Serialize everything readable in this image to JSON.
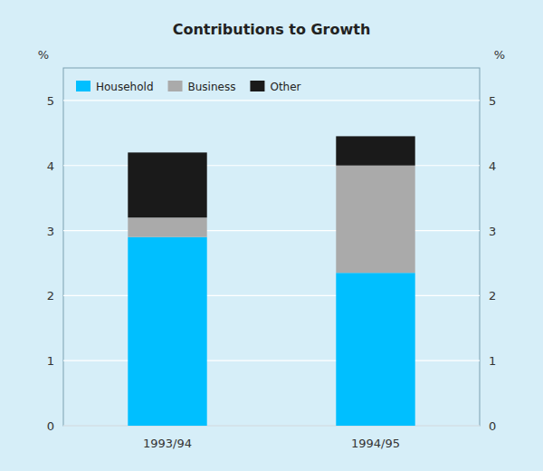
{
  "chart_data": {
    "type": "bar",
    "stacked": true,
    "title": "Contributions to Growth",
    "categories": [
      "1993/94",
      "1994/95"
    ],
    "series": [
      {
        "name": "Household",
        "color": "#00BFFF",
        "values": [
          2.9,
          2.35
        ]
      },
      {
        "name": "Business",
        "color": "#AAAAAA",
        "values": [
          0.3,
          1.65
        ]
      },
      {
        "name": "Other",
        "color": "#1A1A1A",
        "values": [
          1.0,
          0.45
        ]
      }
    ],
    "ylabel": "%",
    "y2label": "%",
    "ylim": [
      0,
      5.5
    ],
    "yticks": [
      0,
      1,
      2,
      3,
      4,
      5
    ],
    "y2lim": [
      0,
      5.5
    ],
    "y2ticks": [
      0,
      1,
      2,
      3,
      4,
      5
    ],
    "grid": true,
    "legend": "upper left"
  }
}
